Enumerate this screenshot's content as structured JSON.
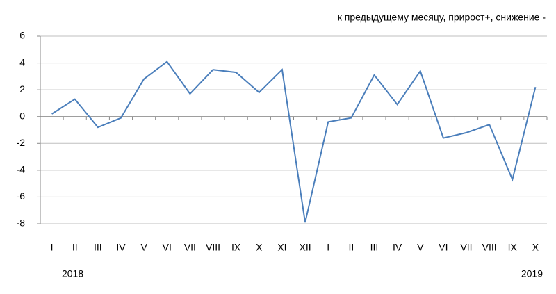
{
  "chart_data": {
    "type": "line",
    "subtitle": "к предыдущему месяцу, прирост+, снижение -",
    "categories": [
      "I",
      "II",
      "III",
      "IV",
      "V",
      "VI",
      "VII",
      "VIII",
      "IX",
      "X",
      "XI",
      "XII",
      "I",
      "II",
      "III",
      "IV",
      "V",
      "VI",
      "VII",
      "VIII",
      "IX",
      "X"
    ],
    "year_labels": [
      "2018",
      "2019"
    ],
    "series": [
      {
        "color": "#4a7ebb",
        "values": [
          0.2,
          1.3,
          -0.8,
          -0.1,
          2.8,
          4.1,
          1.7,
          3.5,
          3.3,
          1.8,
          3.5,
          -7.9,
          -0.4,
          -0.1,
          3.1,
          0.9,
          3.4,
          -1.6,
          -1.2,
          -0.6,
          -4.7,
          2.2
        ]
      }
    ],
    "ylim": [
      -8,
      6
    ],
    "yticks": [
      -8,
      -6,
      -4,
      -2,
      0,
      2,
      4,
      6
    ],
    "grid": true
  }
}
